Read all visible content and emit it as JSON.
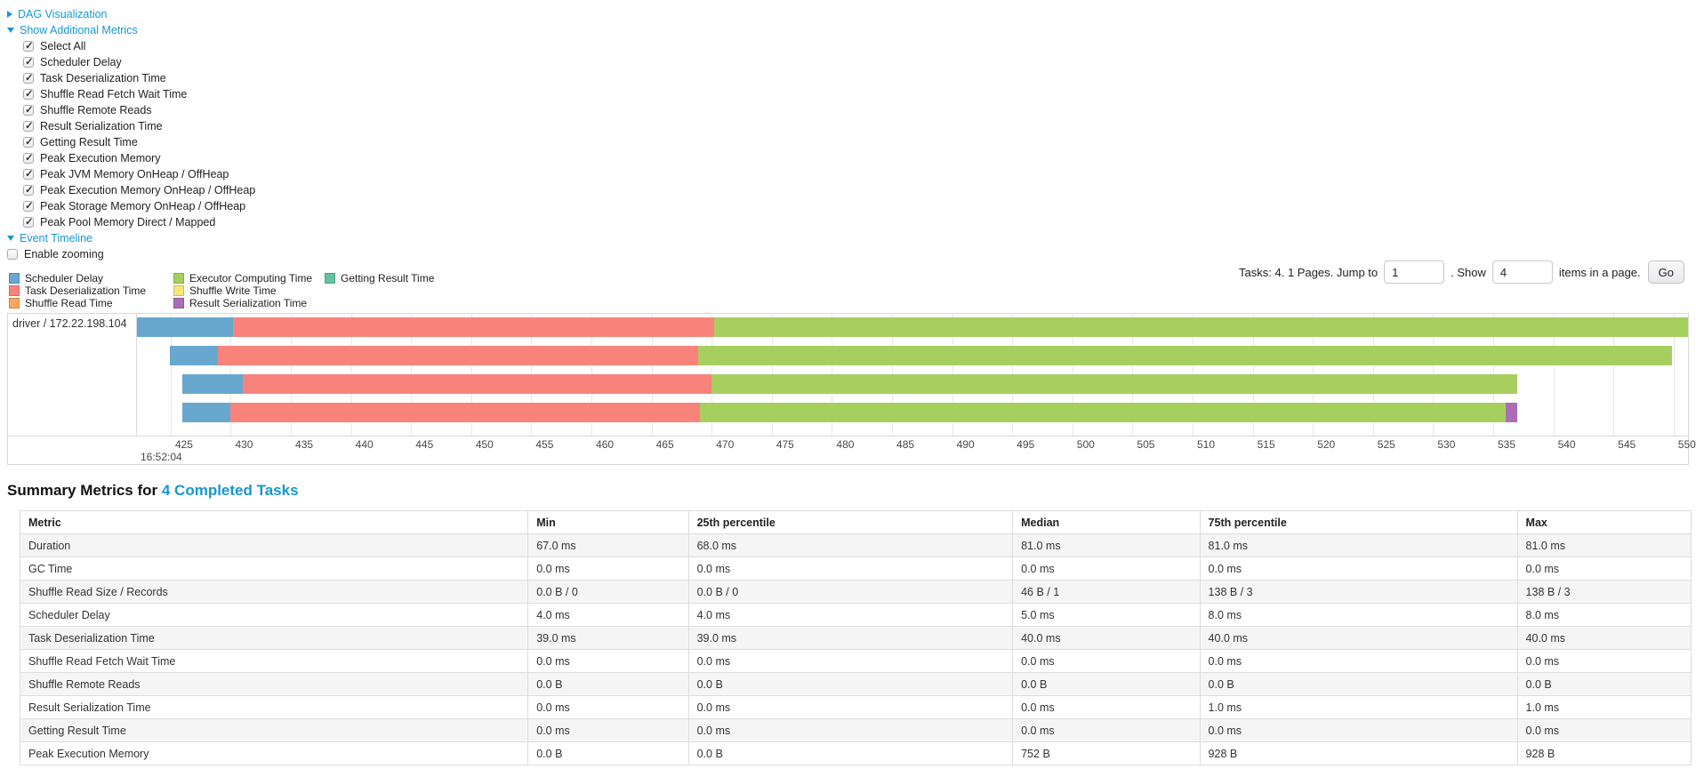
{
  "toggles": {
    "dag": "DAG Visualization",
    "metrics": "Show Additional Metrics",
    "timeline": "Event Timeline"
  },
  "metric_options": [
    {
      "label": "Select All",
      "checked": true
    },
    {
      "label": "Scheduler Delay",
      "checked": true
    },
    {
      "label": "Task Deserialization Time",
      "checked": true
    },
    {
      "label": "Shuffle Read Fetch Wait Time",
      "checked": true
    },
    {
      "label": "Shuffle Remote Reads",
      "checked": true
    },
    {
      "label": "Result Serialization Time",
      "checked": true
    },
    {
      "label": "Getting Result Time",
      "checked": true
    },
    {
      "label": "Peak Execution Memory",
      "checked": true
    },
    {
      "label": "Peak JVM Memory OnHeap / OffHeap",
      "checked": true
    },
    {
      "label": "Peak Execution Memory OnHeap / OffHeap",
      "checked": true
    },
    {
      "label": "Peak Storage Memory OnHeap / OffHeap",
      "checked": true
    },
    {
      "label": "Peak Pool Memory Direct / Mapped",
      "checked": true
    }
  ],
  "enable_zooming": {
    "label": "Enable zooming",
    "checked": false
  },
  "colors": {
    "link": "#1797D3",
    "scheduler_delay": "#68A8CE",
    "task_deserialization": "#F8837B",
    "shuffle_read": "#F8A75B",
    "executor_computing": "#A7CF5F",
    "shuffle_write": "#F5E878",
    "result_serialization": "#AC6DB7",
    "getting_result": "#64C1A3"
  },
  "legend": {
    "columns": [
      [
        {
          "key": "scheduler_delay",
          "label": "Scheduler Delay"
        },
        {
          "key": "task_deserialization",
          "label": "Task Deserialization Time"
        },
        {
          "key": "shuffle_read",
          "label": "Shuffle Read Time"
        }
      ],
      [
        {
          "key": "executor_computing",
          "label": "Executor Computing Time"
        },
        {
          "key": "shuffle_write",
          "label": "Shuffle Write Time"
        },
        {
          "key": "result_serialization",
          "label": "Result Serialization Time"
        }
      ],
      [
        {
          "key": "getting_result",
          "label": "Getting Result Time"
        }
      ]
    ]
  },
  "pagination": {
    "prefix": "Tasks: 4. 1 Pages. Jump to",
    "jump_value": "1",
    "mid": ". Show",
    "show_value": "4",
    "suffix": "items in a page.",
    "go_label": "Go"
  },
  "chart_data": {
    "type": "timeline",
    "group_label": "driver / 172.22.198.104",
    "x_axis": {
      "domain": [
        422.2,
        551.2
      ],
      "tick_start": 425,
      "tick_end": 550,
      "tick_step": 5,
      "major_label": "16:52:04",
      "units": "milliseconds within second 16:52:04"
    },
    "tasks": [
      {
        "start": 422.2,
        "segments": [
          {
            "key": "scheduler_delay",
            "duration": 8
          },
          {
            "key": "task_deserialization",
            "duration": 40
          },
          {
            "key": "executor_computing",
            "duration": 81
          }
        ]
      },
      {
        "start": 424.9,
        "segments": [
          {
            "key": "scheduler_delay",
            "duration": 4
          },
          {
            "key": "task_deserialization",
            "duration": 40
          },
          {
            "key": "executor_computing",
            "duration": 81
          }
        ]
      },
      {
        "start": 426.0,
        "segments": [
          {
            "key": "scheduler_delay",
            "duration": 5
          },
          {
            "key": "task_deserialization",
            "duration": 39
          },
          {
            "key": "executor_computing",
            "duration": 67
          }
        ]
      },
      {
        "start": 426.0,
        "segments": [
          {
            "key": "scheduler_delay",
            "duration": 4
          },
          {
            "key": "task_deserialization",
            "duration": 39
          },
          {
            "key": "executor_computing",
            "duration": 67
          },
          {
            "key": "result_serialization",
            "duration": 1
          }
        ]
      }
    ]
  },
  "summary": {
    "title_prefix": "Summary Metrics for",
    "title_link": "4 Completed Tasks",
    "columns": [
      "Metric",
      "Min",
      "25th percentile",
      "Median",
      "75th percentile",
      "Max"
    ],
    "rows": [
      [
        "Duration",
        "67.0 ms",
        "68.0 ms",
        "81.0 ms",
        "81.0 ms",
        "81.0 ms"
      ],
      [
        "GC Time",
        "0.0 ms",
        "0.0 ms",
        "0.0 ms",
        "0.0 ms",
        "0.0 ms"
      ],
      [
        "Shuffle Read Size / Records",
        "0.0 B / 0",
        "0.0 B / 0",
        "46 B / 1",
        "138 B / 3",
        "138 B / 3"
      ],
      [
        "Scheduler Delay",
        "4.0 ms",
        "4.0 ms",
        "5.0 ms",
        "8.0 ms",
        "8.0 ms"
      ],
      [
        "Task Deserialization Time",
        "39.0 ms",
        "39.0 ms",
        "40.0 ms",
        "40.0 ms",
        "40.0 ms"
      ],
      [
        "Shuffle Read Fetch Wait Time",
        "0.0 ms",
        "0.0 ms",
        "0.0 ms",
        "0.0 ms",
        "0.0 ms"
      ],
      [
        "Shuffle Remote Reads",
        "0.0 B",
        "0.0 B",
        "0.0 B",
        "0.0 B",
        "0.0 B"
      ],
      [
        "Result Serialization Time",
        "0.0 ms",
        "0.0 ms",
        "0.0 ms",
        "1.0 ms",
        "1.0 ms"
      ],
      [
        "Getting Result Time",
        "0.0 ms",
        "0.0 ms",
        "0.0 ms",
        "0.0 ms",
        "0.0 ms"
      ],
      [
        "Peak Execution Memory",
        "0.0 B",
        "0.0 B",
        "752 B",
        "928 B",
        "928 B"
      ]
    ]
  }
}
